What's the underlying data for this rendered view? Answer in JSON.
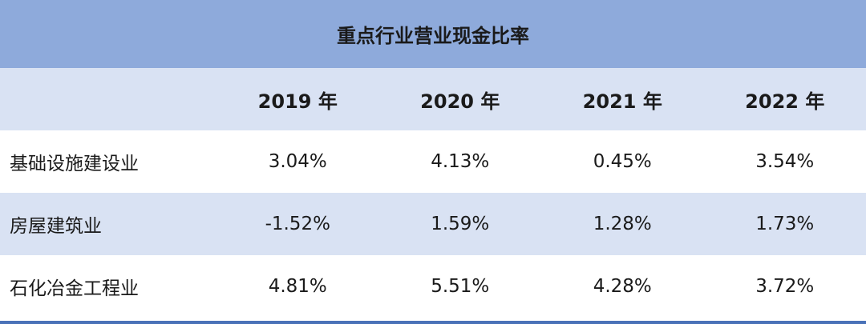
{
  "table": {
    "title": "重点行业营业现金比率",
    "header": [
      "",
      "2019 年",
      "2020 年",
      "2021 年",
      "2022 年"
    ],
    "rows": [
      {
        "label": "基础设施建设业",
        "values": [
          "3.04%",
          "4.13%",
          "0.45%",
          "3.54%"
        ]
      },
      {
        "label": "房屋建筑业",
        "values": [
          "-1.52%",
          "1.59%",
          "1.28%",
          "1.73%"
        ]
      },
      {
        "label": "石化冶金工程业",
        "values": [
          "4.81%",
          "5.51%",
          "4.28%",
          "3.72%"
        ]
      }
    ]
  },
  "colors": {
    "title_bg": "#8eaadb",
    "band_bg": "#d9e2f3",
    "rule": "#4a72b8"
  }
}
